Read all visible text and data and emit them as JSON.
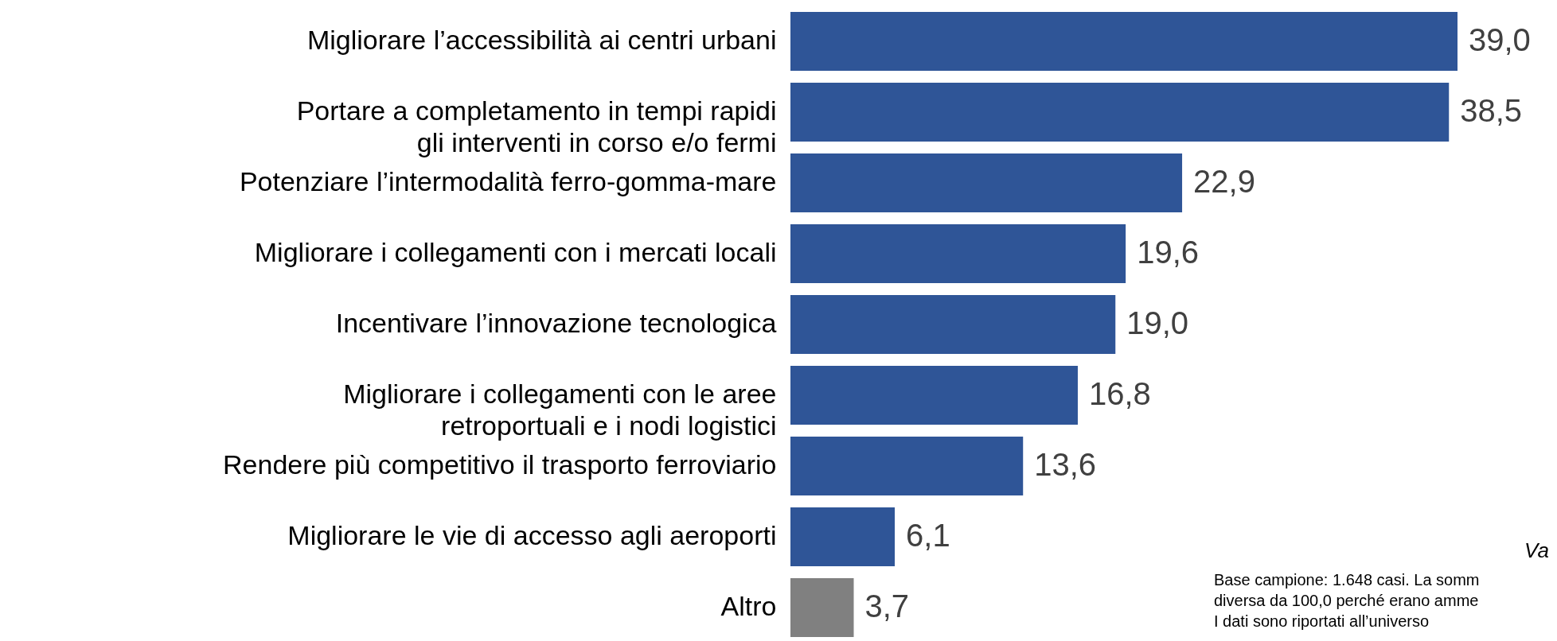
{
  "chart_data": {
    "type": "bar",
    "orientation": "horizontal",
    "categories": [
      "Migliorare l’accessibilità ai centri urbani",
      "Portare a completamento in tempi rapidi\ngli interventi in corso e/o fermi",
      "Potenziare l’intermodalità ferro-gomma-mare",
      "Migliorare i collegamenti con i mercati locali",
      "Incentivare l’innovazione tecnologica",
      "Migliorare i collegamenti con le aree\nretroportuali e i nodi logistici",
      "Rendere più competitivo il trasporto ferroviario",
      "Migliorare le vie di accesso agli aeroporti",
      "Altro"
    ],
    "values": [
      39.0,
      38.5,
      22.9,
      19.6,
      19.0,
      16.8,
      13.6,
      6.1,
      3.7
    ],
    "value_labels": [
      "39,0",
      "38,5",
      "22,9",
      "19,6",
      "19,0",
      "16,8",
      "13,6",
      "6,1",
      "3,7"
    ],
    "colors": [
      "#2f5597",
      "#2f5597",
      "#2f5597",
      "#2f5597",
      "#2f5597",
      "#2f5597",
      "#2f5597",
      "#2f5597",
      "#808080"
    ],
    "xlim": [
      0,
      39
    ],
    "tick_labels": "y",
    "annotations": [
      "Va",
      "Base campione: 1.648 casi. La somm",
      "diversa da 100,0 perché erano amme",
      "I dati sono riportati all’universo"
    ]
  }
}
